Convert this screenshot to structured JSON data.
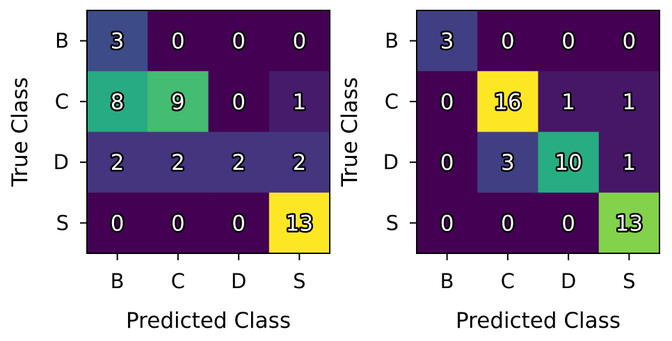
{
  "chart_data": [
    {
      "type": "heatmap",
      "title": "",
      "xlabel": "Predicted Class",
      "ylabel": "True Class",
      "x_categories": [
        "B",
        "C",
        "D",
        "S"
      ],
      "y_categories": [
        "B",
        "C",
        "D",
        "S"
      ],
      "matrix": [
        [
          3,
          0,
          0,
          0
        ],
        [
          8,
          9,
          0,
          1
        ],
        [
          2,
          2,
          2,
          2
        ],
        [
          0,
          0,
          0,
          13
        ]
      ],
      "colormap": "viridis",
      "grid": false
    },
    {
      "type": "heatmap",
      "title": "",
      "xlabel": "Predicted Class",
      "ylabel": "True Class",
      "x_categories": [
        "B",
        "C",
        "D",
        "S"
      ],
      "y_categories": [
        "B",
        "C",
        "D",
        "S"
      ],
      "matrix": [
        [
          3,
          0,
          0,
          0
        ],
        [
          0,
          16,
          1,
          1
        ],
        [
          0,
          3,
          10,
          1
        ],
        [
          0,
          0,
          0,
          13
        ]
      ],
      "colormap": "viridis",
      "grid": false
    }
  ]
}
